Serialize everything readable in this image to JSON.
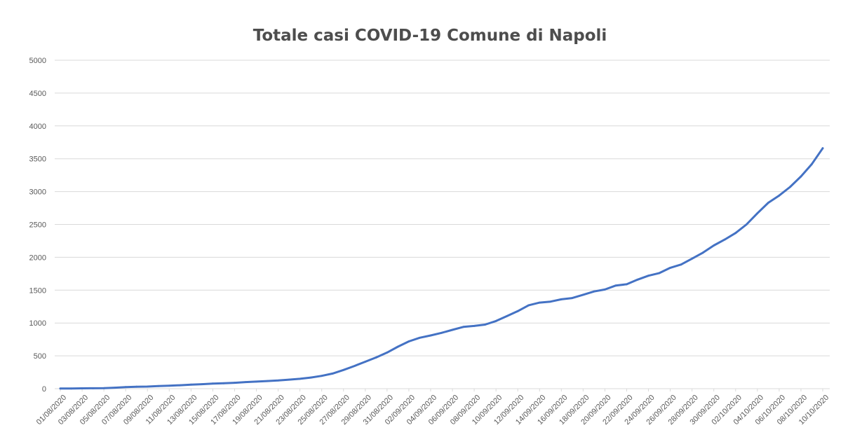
{
  "chart_data": {
    "type": "line",
    "title": "Totale casi COVID-19 Comune di Napoli",
    "xlabel": "",
    "ylabel": "",
    "ylim": [
      0,
      5000
    ],
    "yticks": [
      "0",
      "500",
      "1000",
      "1500",
      "2000",
      "2500",
      "3000",
      "3500",
      "4000",
      "4500",
      "5000"
    ],
    "grid": true,
    "legend": "none",
    "line_color": "#4472c4",
    "grid_color": "#d9d9d9",
    "x": [
      "01/08/2020",
      "02/08/2020",
      "03/08/2020",
      "04/08/2020",
      "05/08/2020",
      "06/08/2020",
      "07/08/2020",
      "08/08/2020",
      "09/08/2020",
      "10/08/2020",
      "11/08/2020",
      "12/08/2020",
      "13/08/2020",
      "14/08/2020",
      "15/08/2020",
      "16/08/2020",
      "17/08/2020",
      "18/08/2020",
      "19/08/2020",
      "20/08/2020",
      "21/08/2020",
      "22/08/2020",
      "23/08/2020",
      "24/08/2020",
      "25/08/2020",
      "26/08/2020",
      "27/08/2020",
      "28/08/2020",
      "29/08/2020",
      "30/08/2020",
      "31/08/2020",
      "01/09/2020",
      "02/09/2020",
      "03/09/2020",
      "04/09/2020",
      "05/09/2020",
      "06/09/2020",
      "07/09/2020",
      "08/09/2020",
      "09/09/2020",
      "10/09/2020",
      "11/09/2020",
      "12/09/2020",
      "13/09/2020",
      "14/09/2020",
      "15/09/2020",
      "16/09/2020",
      "17/09/2020",
      "18/09/2020",
      "19/09/2020",
      "20/09/2020",
      "21/09/2020",
      "22/09/2020",
      "23/09/2020",
      "24/09/2020",
      "25/09/2020",
      "26/09/2020",
      "27/09/2020",
      "28/09/2020",
      "29/09/2020",
      "30/09/2020",
      "01/10/2020",
      "02/10/2020",
      "03/10/2020",
      "04/10/2020",
      "05/10/2020",
      "06/10/2020",
      "07/10/2020",
      "08/10/2020",
      "09/10/2020",
      "10/10/2020"
    ],
    "xtick_labels": [
      "01/08/2020",
      "03/08/2020",
      "05/08/2020",
      "07/08/2020",
      "09/08/2020",
      "11/08/2020",
      "13/08/2020",
      "15/08/2020",
      "17/08/2020",
      "19/08/2020",
      "21/08/2020",
      "23/08/2020",
      "25/08/2020",
      "27/08/2020",
      "29/08/2020",
      "31/08/2020",
      "02/09/2020",
      "04/09/2020",
      "06/09/2020",
      "08/09/2020",
      "10/09/2020",
      "12/09/2020",
      "14/09/2020",
      "16/09/2020",
      "18/09/2020",
      "20/09/2020",
      "22/09/2020",
      "24/09/2020",
      "26/09/2020",
      "28/09/2020",
      "30/09/2020",
      "02/10/2020",
      "04/10/2020",
      "06/10/2020",
      "08/10/2020",
      "10/10/2020"
    ],
    "series": [
      {
        "values": [
          2,
          3,
          5,
          6,
          8,
          15,
          25,
          30,
          32,
          40,
          45,
          52,
          62,
          68,
          78,
          82,
          90,
          100,
          108,
          116,
          125,
          137,
          150,
          170,
          195,
          230,
          285,
          345,
          410,
          475,
          550,
          640,
          720,
          775,
          810,
          850,
          895,
          940,
          955,
          975,
          1030,
          1105,
          1180,
          1270,
          1310,
          1325,
          1360,
          1380,
          1430,
          1480,
          1510,
          1570,
          1590,
          1660,
          1720,
          1760,
          1840,
          1890,
          1980,
          2070,
          2180,
          2270,
          2370,
          2500,
          2670,
          2830,
          2940,
          3070,
          3230,
          3420,
          3660
        ]
      }
    ]
  }
}
